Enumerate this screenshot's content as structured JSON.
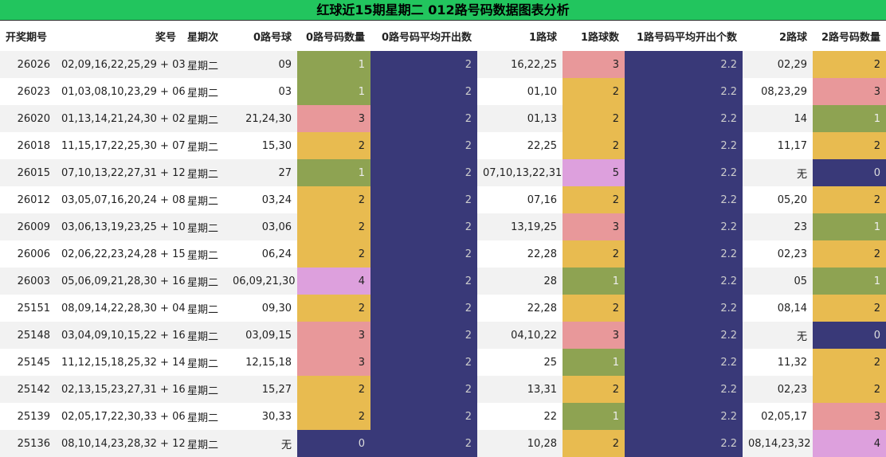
{
  "title": "红球近15期星期二 012路号码数据图表分析",
  "table": {
    "header": [
      "开奖期号",
      "奖号",
      "星期次",
      "0路号球",
      "0路号码数量",
      "0路号码平均开出数",
      "1路球",
      "1路球数",
      "1路号码平均开出个数",
      "2路球",
      "2路号码数量"
    ],
    "rows": [
      [
        26026,
        "02,09,16,22,25,29 + 03",
        "星期二",
        "09",
        1,
        2,
        "16,22,25",
        3,
        2.2,
        "02,29",
        2
      ],
      [
        26023,
        "01,03,08,10,23,29 + 06",
        "星期二",
        "03",
        1,
        2,
        "01,10",
        2,
        2.2,
        "08,23,29",
        3
      ],
      [
        26020,
        "01,13,14,21,24,30 + 02",
        "星期二",
        "21,24,30",
        3,
        2,
        "01,13",
        2,
        2.2,
        "14",
        1
      ],
      [
        26018,
        "11,15,17,22,25,30 + 07",
        "星期二",
        "15,30",
        2,
        2,
        "22,25",
        2,
        2.2,
        "11,17",
        2
      ],
      [
        26015,
        "07,10,13,22,27,31 + 12",
        "星期二",
        "27",
        1,
        2,
        "07,10,13,22,31",
        5,
        2.2,
        "无",
        0
      ],
      [
        26012,
        "03,05,07,16,20,24 + 08",
        "星期二",
        "03,24",
        2,
        2,
        "07,16",
        2,
        2.2,
        "05,20",
        2
      ],
      [
        26009,
        "03,06,13,19,23,25 + 10",
        "星期二",
        "03,06",
        2,
        2,
        "13,19,25",
        3,
        2.2,
        "23",
        1
      ],
      [
        26006,
        "02,06,22,23,24,28 + 15",
        "星期二",
        "06,24",
        2,
        2,
        "22,28",
        2,
        2.2,
        "02,23",
        2
      ],
      [
        26003,
        "05,06,09,21,28,30 + 16",
        "星期二",
        "06,09,21,30",
        4,
        2,
        "28",
        1,
        2.2,
        "05",
        1
      ],
      [
        25151,
        "08,09,14,22,28,30 + 04",
        "星期二",
        "09,30",
        2,
        2,
        "22,28",
        2,
        2.2,
        "08,14",
        2
      ],
      [
        25148,
        "03,04,09,10,15,22 + 16",
        "星期二",
        "03,09,15",
        3,
        2,
        "04,10,22",
        3,
        2.2,
        "无",
        0
      ],
      [
        25145,
        "11,12,15,18,25,32 + 14",
        "星期二",
        "12,15,18",
        3,
        2,
        "25",
        1,
        2.2,
        "11,32",
        2
      ],
      [
        25142,
        "02,13,15,23,27,31 + 16",
        "星期二",
        "15,27",
        2,
        2,
        "13,31",
        2,
        2.2,
        "02,23",
        2
      ],
      [
        25139,
        "02,05,17,22,30,33 + 06",
        "星期二",
        "30,33",
        2,
        2,
        "22",
        1,
        2.2,
        "02,05,17",
        3
      ],
      [
        25136,
        "08,10,14,23,28,32 + 12",
        "星期二",
        "无",
        0,
        2,
        "10,28",
        2,
        2.2,
        "08,14,23,32",
        4
      ]
    ]
  }
}
